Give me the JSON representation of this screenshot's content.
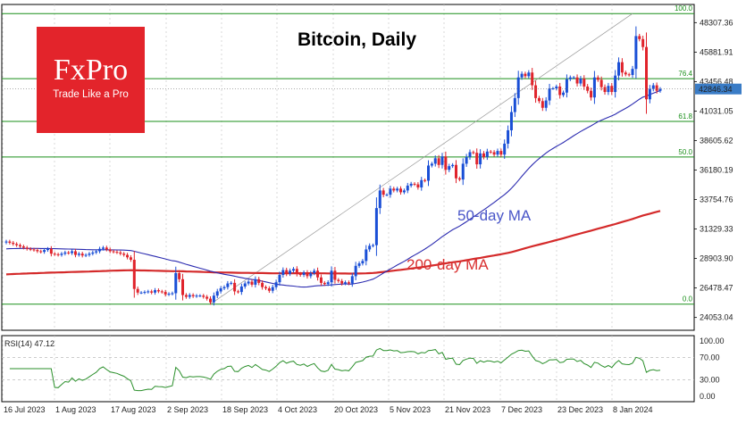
{
  "branding": {
    "logo_text": "FxPro",
    "tagline": "Trade Like a Pro"
  },
  "chart_data": {
    "type": "candlestick",
    "title": "Bitcoin, Daily",
    "current_price": "42846.34",
    "y_ticks": [
      "48307.36",
      "45881.91",
      "43456.48",
      "41031.05",
      "38605.62",
      "36180.19",
      "33754.76",
      "31329.33",
      "28903.90",
      "26478.47",
      "24053.04"
    ],
    "ylim": [
      23000,
      49800
    ],
    "x_ticks": [
      "16 Jul 2023",
      "1 Aug 2023",
      "17 Aug 2023",
      "2 Sep 2023",
      "18 Sep 2023",
      "4 Oct 2023",
      "20 Oct 2023",
      "5 Nov 2023",
      "21 Nov 2023",
      "7 Dec 2023",
      "23 Dec 2023",
      "8 Jan 2024"
    ],
    "fibonacci_levels": [
      {
        "label": "100.0",
        "price": 49050
      },
      {
        "label": "76.4",
        "price": 43700
      },
      {
        "label": "61.8",
        "price": 40180
      },
      {
        "label": "50.0",
        "price": 37250
      },
      {
        "label": "0.0",
        "price": 25150
      }
    ],
    "ma50_label": "50-day MA",
    "ma200_label": "200-day MA",
    "close": [
      30300,
      30200,
      30100,
      30000,
      29900,
      29800,
      29700,
      29650,
      29600,
      29500,
      29450,
      29600,
      29700,
      29300,
      29250,
      29200,
      29300,
      29400,
      29350,
      29500,
      29200,
      29300,
      29150,
      29200,
      29300,
      29400,
      29500,
      29700,
      29800,
      29650,
      29500,
      29450,
      29400,
      29300,
      29200,
      29000,
      28800,
      26400,
      26100,
      26100,
      26150,
      26200,
      26100,
      26300,
      26200,
      26150,
      25950,
      26000,
      26050,
      27700,
      27200,
      25900,
      25750,
      25900,
      25800,
      25850,
      25850,
      25750,
      25600,
      25300,
      25850,
      26200,
      26450,
      26550,
      26850,
      26900,
      26200,
      26150,
      26600,
      26850,
      27000,
      26750,
      27200,
      26900,
      26550,
      26450,
      26250,
      26550,
      26950,
      27550,
      27950,
      27650,
      27900,
      28050,
      27650,
      27550,
      27750,
      27450,
      27700,
      27900,
      27350,
      26900,
      26800,
      26950,
      27900,
      27150,
      27050,
      26850,
      26950,
      26850,
      27450,
      28300,
      28500,
      28700,
      29650,
      29950,
      30000,
      33050,
      34500,
      34150,
      34150,
      34650,
      34500,
      34650,
      34350,
      34500,
      34900,
      35050,
      35000,
      34750,
      35350,
      35300,
      36550,
      36700,
      37150,
      36600,
      37300,
      36200,
      36500,
      36600,
      35500,
      35400,
      36700,
      37250,
      37650,
      37600,
      36650,
      37550,
      37250,
      37700,
      37650,
      37450,
      37750,
      37450,
      38350,
      39450,
      40950,
      42100,
      43800,
      44100,
      43900,
      44200,
      43150,
      42100,
      41850,
      41300,
      41900,
      42900,
      42900,
      43050,
      42350,
      42550,
      43650,
      43800,
      43800,
      43300,
      43700,
      43050,
      42700,
      42150,
      43800,
      43600,
      43000,
      42600,
      43100,
      42600,
      43950,
      45050,
      44200,
      44050,
      44000,
      44500,
      47200,
      46950,
      46300,
      42000,
      42850,
      43150,
      42700,
      42846
    ],
    "rsi": {
      "label": "RSI(14) 47.12",
      "levels": [
        100,
        70,
        30,
        0
      ],
      "ticks": [
        "100.00",
        "70.00",
        "30.00",
        "0.00"
      ]
    }
  }
}
